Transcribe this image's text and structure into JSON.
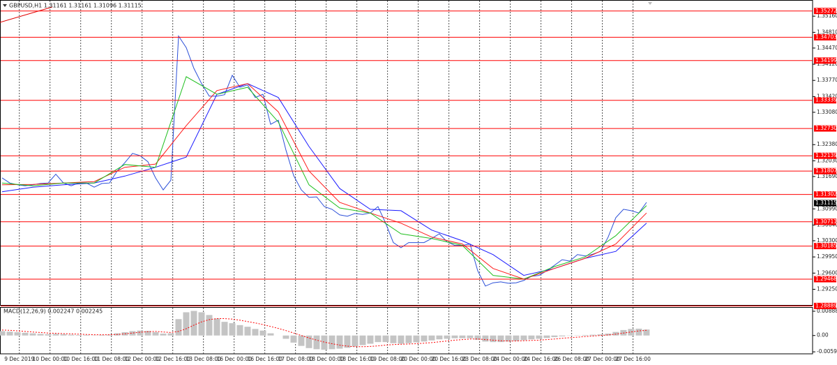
{
  "chart_data": [
    {
      "type": "line",
      "title": "GBPUSD,H1  1.31161 1.31161 1.31096 1.31115",
      "xlim": [
        -1.1,
        422.6
      ],
      "ylim": [
        1.2891,
        1.3551
      ],
      "x": [
        0,
        4,
        8,
        12,
        16,
        20,
        24,
        28,
        32,
        36,
        40,
        44,
        48,
        52,
        56,
        60,
        64,
        68,
        72,
        76,
        80,
        84,
        88,
        92,
        96,
        100,
        104,
        108,
        112,
        116,
        120,
        124,
        128,
        132,
        136,
        140,
        144,
        148,
        152,
        156,
        160,
        164,
        168,
        172,
        176,
        180,
        184,
        188,
        192,
        196,
        200,
        204,
        208,
        212,
        216,
        220,
        224,
        228,
        232,
        236,
        240,
        244,
        248,
        252,
        256,
        260,
        264,
        268,
        272,
        276,
        280,
        284,
        288,
        292,
        296,
        300,
        304,
        308,
        312,
        316,
        320,
        324,
        328,
        332,
        336
      ],
      "series": [
        {
          "color": "#2b4fd8",
          "values": [
            1.3166,
            1.3155,
            1.3151,
            1.3149,
            1.3151,
            1.3154,
            1.3155,
            1.3174,
            1.3155,
            1.3149,
            1.3155,
            1.3155,
            1.3146,
            1.3154,
            1.3155,
            1.3181,
            1.3199,
            1.3219,
            1.3214,
            1.3201,
            1.3166,
            1.314,
            1.3161,
            1.3473,
            1.3448,
            1.3403,
            1.337,
            1.3343,
            1.3343,
            1.3346,
            1.3388,
            1.3362,
            1.3367,
            1.334,
            1.3347,
            1.3282,
            1.3291,
            1.3226,
            1.3171,
            1.314,
            1.3124,
            1.3125,
            1.3104,
            1.3098,
            1.3086,
            1.3083,
            1.3089,
            1.3087,
            1.309,
            1.3104,
            1.3068,
            1.3026,
            1.3015,
            1.3026,
            1.3026,
            1.3026,
            1.3035,
            1.3045,
            1.3028,
            1.302,
            1.302,
            1.3023,
            1.2965,
            1.2932,
            1.2939,
            1.2941,
            1.2938,
            1.2939,
            1.2944,
            1.2953,
            1.2955,
            1.2965,
            1.2977,
            1.2989,
            1.2986,
            1.3,
            1.2997,
            1.3001,
            1.3007,
            1.3038,
            1.308,
            1.3098,
            1.3095,
            1.309,
            1.3113
          ]
        },
        {
          "color": "#1a1aff",
          "x": [
            0,
            16,
            32,
            48,
            64,
            80,
            96,
            112,
            128,
            144,
            160,
            176,
            192,
            208,
            224,
            240,
            256,
            272,
            288,
            304,
            320,
            336
          ],
          "values": [
            1.3136,
            1.3146,
            1.3151,
            1.3155,
            1.317,
            1.3189,
            1.3211,
            1.3347,
            1.337,
            1.334,
            1.3234,
            1.3143,
            1.3098,
            1.3095,
            1.3053,
            1.303,
            1.3,
            1.2955,
            1.297,
            1.2992,
            1.3007,
            1.3068
          ]
        },
        {
          "color": "#ff1a1a",
          "x": [
            0,
            16,
            32,
            48,
            64,
            80,
            96,
            112,
            128,
            144,
            160,
            176,
            192,
            208,
            224,
            240,
            256,
            272,
            288,
            304,
            320,
            336
          ],
          "values": [
            1.3151,
            1.3152,
            1.3155,
            1.3158,
            1.3189,
            1.3196,
            1.3279,
            1.3355,
            1.337,
            1.3309,
            1.3181,
            1.3113,
            1.309,
            1.3068,
            1.3038,
            1.3023,
            1.297,
            1.2947,
            1.297,
            1.2992,
            1.3023,
            1.309
          ]
        },
        {
          "color": "#1fbf1f",
          "x": [
            0,
            16,
            32,
            48,
            64,
            80,
            96,
            112,
            128,
            144,
            160,
            176,
            192,
            208,
            224,
            240,
            256,
            272,
            288,
            304,
            320,
            336
          ],
          "values": [
            1.3155,
            1.3149,
            1.3155,
            1.3155,
            1.3195,
            1.3189,
            1.3385,
            1.3347,
            1.3362,
            1.3287,
            1.3151,
            1.3101,
            1.309,
            1.3045,
            1.3035,
            1.302,
            1.2955,
            1.2947,
            1.2974,
            1.2995,
            1.3041,
            1.3106
          ]
        }
      ],
      "yticks": [
        {
          "value": 1.3516,
          "label": "1.35160"
        },
        {
          "value": 1.3481,
          "label": "1.34810"
        },
        {
          "value": 1.3447,
          "label": "1.34470"
        },
        {
          "value": 1.3412,
          "label": "1.34120"
        },
        {
          "value": 1.3377,
          "label": "1.33770"
        },
        {
          "value": 1.3342,
          "label": "1.33420"
        },
        {
          "value": 1.3308,
          "label": "1.33080"
        },
        {
          "value": 1.3238,
          "label": "1.32380"
        },
        {
          "value": 1.3203,
          "label": "1.32030"
        },
        {
          "value": 1.3169,
          "label": "1.31690"
        },
        {
          "value": 1.3099,
          "label": "1.30990"
        },
        {
          "value": 1.3064,
          "label": "1.30640"
        },
        {
          "value": 1.303,
          "label": "1.30300"
        },
        {
          "value": 1.2995,
          "label": "1.29950"
        },
        {
          "value": 1.296,
          "label": "1.29600"
        },
        {
          "value": 1.2925,
          "label": "1.29250"
        }
      ],
      "levels": [
        1.35272,
        1.34703,
        1.34199,
        1.33339,
        {
          "value": 1.3273,
          "label": "1.32730"
        },
        1.32139,
        1.31807,
        1.31302,
        1.30711,
        1.30185,
        1.29468,
        1.28889
      ],
      "level_color": "#ff0000",
      "last_price": 1.31115,
      "xticks": [
        {
          "value": 9,
          "label": "9 Dec 2019"
        },
        {
          "value": 25,
          "label": "10 Dec 00:00"
        },
        {
          "value": 41,
          "label": "10 Dec 16:00"
        },
        {
          "value": 57,
          "label": "11 Dec 08:00"
        },
        {
          "value": 73,
          "label": "12 Dec 00:00"
        },
        {
          "value": 89,
          "label": "12 Dec 16:00"
        },
        {
          "value": 105,
          "label": "13 Dec 08:00"
        },
        {
          "value": 121,
          "label": "16 Dec 00:00"
        },
        {
          "value": 137,
          "label": "16 Dec 16:00"
        },
        {
          "value": 153,
          "label": "17 Dec 08:00"
        },
        {
          "value": 169,
          "label": "18 Dec 00:00"
        },
        {
          "value": 185,
          "label": "18 Dec 16:00"
        },
        {
          "value": 201,
          "label": "19 Dec 08:00"
        },
        {
          "value": 217,
          "label": "20 Dec 00:00"
        },
        {
          "value": 233,
          "label": "20 Dec 16:00"
        },
        {
          "value": 249,
          "label": "23 Dec 08:00"
        },
        {
          "value": 265,
          "label": "24 Dec 00:00"
        },
        {
          "value": 281,
          "label": "24 Dec 16:00"
        },
        {
          "value": 297,
          "label": "26 Dec 08:00"
        },
        {
          "value": 313,
          "label": "27 Dec 00:00"
        },
        {
          "value": 329,
          "label": "27 Dec 16:00"
        }
      ],
      "grid": true
    },
    {
      "type": "bar",
      "title": "MACD(12,26,9) 0.002247 0.002245",
      "xlim": [
        -1.1,
        422.6
      ],
      "ylim": [
        -0.0067,
        0.0104
      ],
      "yticks": [
        0.00888,
        {
          "value": 0,
          "label": "0.00"
        },
        -0.005969
      ],
      "x": [
        0,
        4,
        8,
        12,
        16,
        20,
        24,
        28,
        32,
        36,
        40,
        44,
        48,
        52,
        56,
        60,
        64,
        68,
        72,
        76,
        80,
        84,
        88,
        92,
        96,
        100,
        104,
        108,
        112,
        116,
        120,
        124,
        128,
        132,
        136,
        140,
        144,
        148,
        152,
        156,
        160,
        164,
        168,
        172,
        176,
        180,
        184,
        188,
        192,
        196,
        200,
        204,
        208,
        212,
        216,
        220,
        224,
        228,
        232,
        236,
        240,
        244,
        248,
        252,
        256,
        260,
        264,
        268,
        272,
        276,
        280,
        284,
        288,
        292,
        296,
        300,
        304,
        308,
        312,
        316,
        320,
        324,
        328,
        332,
        336
      ],
      "color": "#c4c4c4",
      "values": [
        0.0016,
        0.0014,
        0.0012,
        0.001,
        0.0008,
        0.0006,
        0.0005,
        0.0006,
        0.0005,
        0.0003,
        0.0002,
        0.0002,
        0.0001,
        0.0002,
        0.0003,
        0.0008,
        0.0012,
        0.0016,
        0.0018,
        0.0017,
        0.0012,
        0.0007,
        0.0008,
        0.006,
        0.0085,
        0.009,
        0.0085,
        0.0075,
        0.0062,
        0.005,
        0.0045,
        0.0038,
        0.0032,
        0.0024,
        0.0018,
        0.0008,
        0.0,
        -0.0012,
        -0.0026,
        -0.0038,
        -0.0046,
        -0.005,
        -0.0052,
        -0.005,
        -0.0048,
        -0.0045,
        -0.004,
        -0.0035,
        -0.003,
        -0.0024,
        -0.0024,
        -0.0028,
        -0.003,
        -0.0028,
        -0.0025,
        -0.0022,
        -0.0018,
        -0.0014,
        -0.0012,
        -0.001,
        -0.001,
        -0.001,
        -0.0016,
        -0.0022,
        -0.0024,
        -0.0024,
        -0.0022,
        -0.002,
        -0.0017,
        -0.0014,
        -0.0012,
        -0.0009,
        -0.0006,
        -0.0003,
        -0.0001,
        0.0001,
        0.0002,
        0.0003,
        0.0004,
        0.0007,
        0.0013,
        0.002,
        0.0024,
        0.0025,
        0.0022
      ],
      "signal": {
        "color": "#ff0000",
        "dashed": true,
        "values": [
          0.002,
          0.0019,
          0.0017,
          0.0015,
          0.0013,
          0.0011,
          0.0009,
          0.0008,
          0.0007,
          0.0006,
          0.0005,
          0.0004,
          0.0003,
          0.0003,
          0.0003,
          0.0004,
          0.0006,
          0.0009,
          0.0012,
          0.0014,
          0.0015,
          0.0013,
          0.0011,
          0.0015,
          0.0025,
          0.0038,
          0.005,
          0.0058,
          0.0062,
          0.0062,
          0.006,
          0.0056,
          0.0051,
          0.0046,
          0.004,
          0.0033,
          0.0026,
          0.0018,
          0.0009,
          0.0,
          -0.0009,
          -0.0017,
          -0.0024,
          -0.003,
          -0.0035,
          -0.0039,
          -0.0041,
          -0.0041,
          -0.004,
          -0.0038,
          -0.0035,
          -0.0033,
          -0.0032,
          -0.0031,
          -0.003,
          -0.0028,
          -0.0026,
          -0.0023,
          -0.002,
          -0.0017,
          -0.0015,
          -0.0013,
          -0.0013,
          -0.0015,
          -0.0017,
          -0.0019,
          -0.002,
          -0.002,
          -0.0019,
          -0.0018,
          -0.0017,
          -0.0015,
          -0.0013,
          -0.001,
          -0.0008,
          -0.0006,
          -0.0004,
          -0.0002,
          0.0,
          0.0002,
          0.0005,
          0.0009,
          0.0013,
          0.0017,
          0.0019
        ]
      }
    }
  ]
}
